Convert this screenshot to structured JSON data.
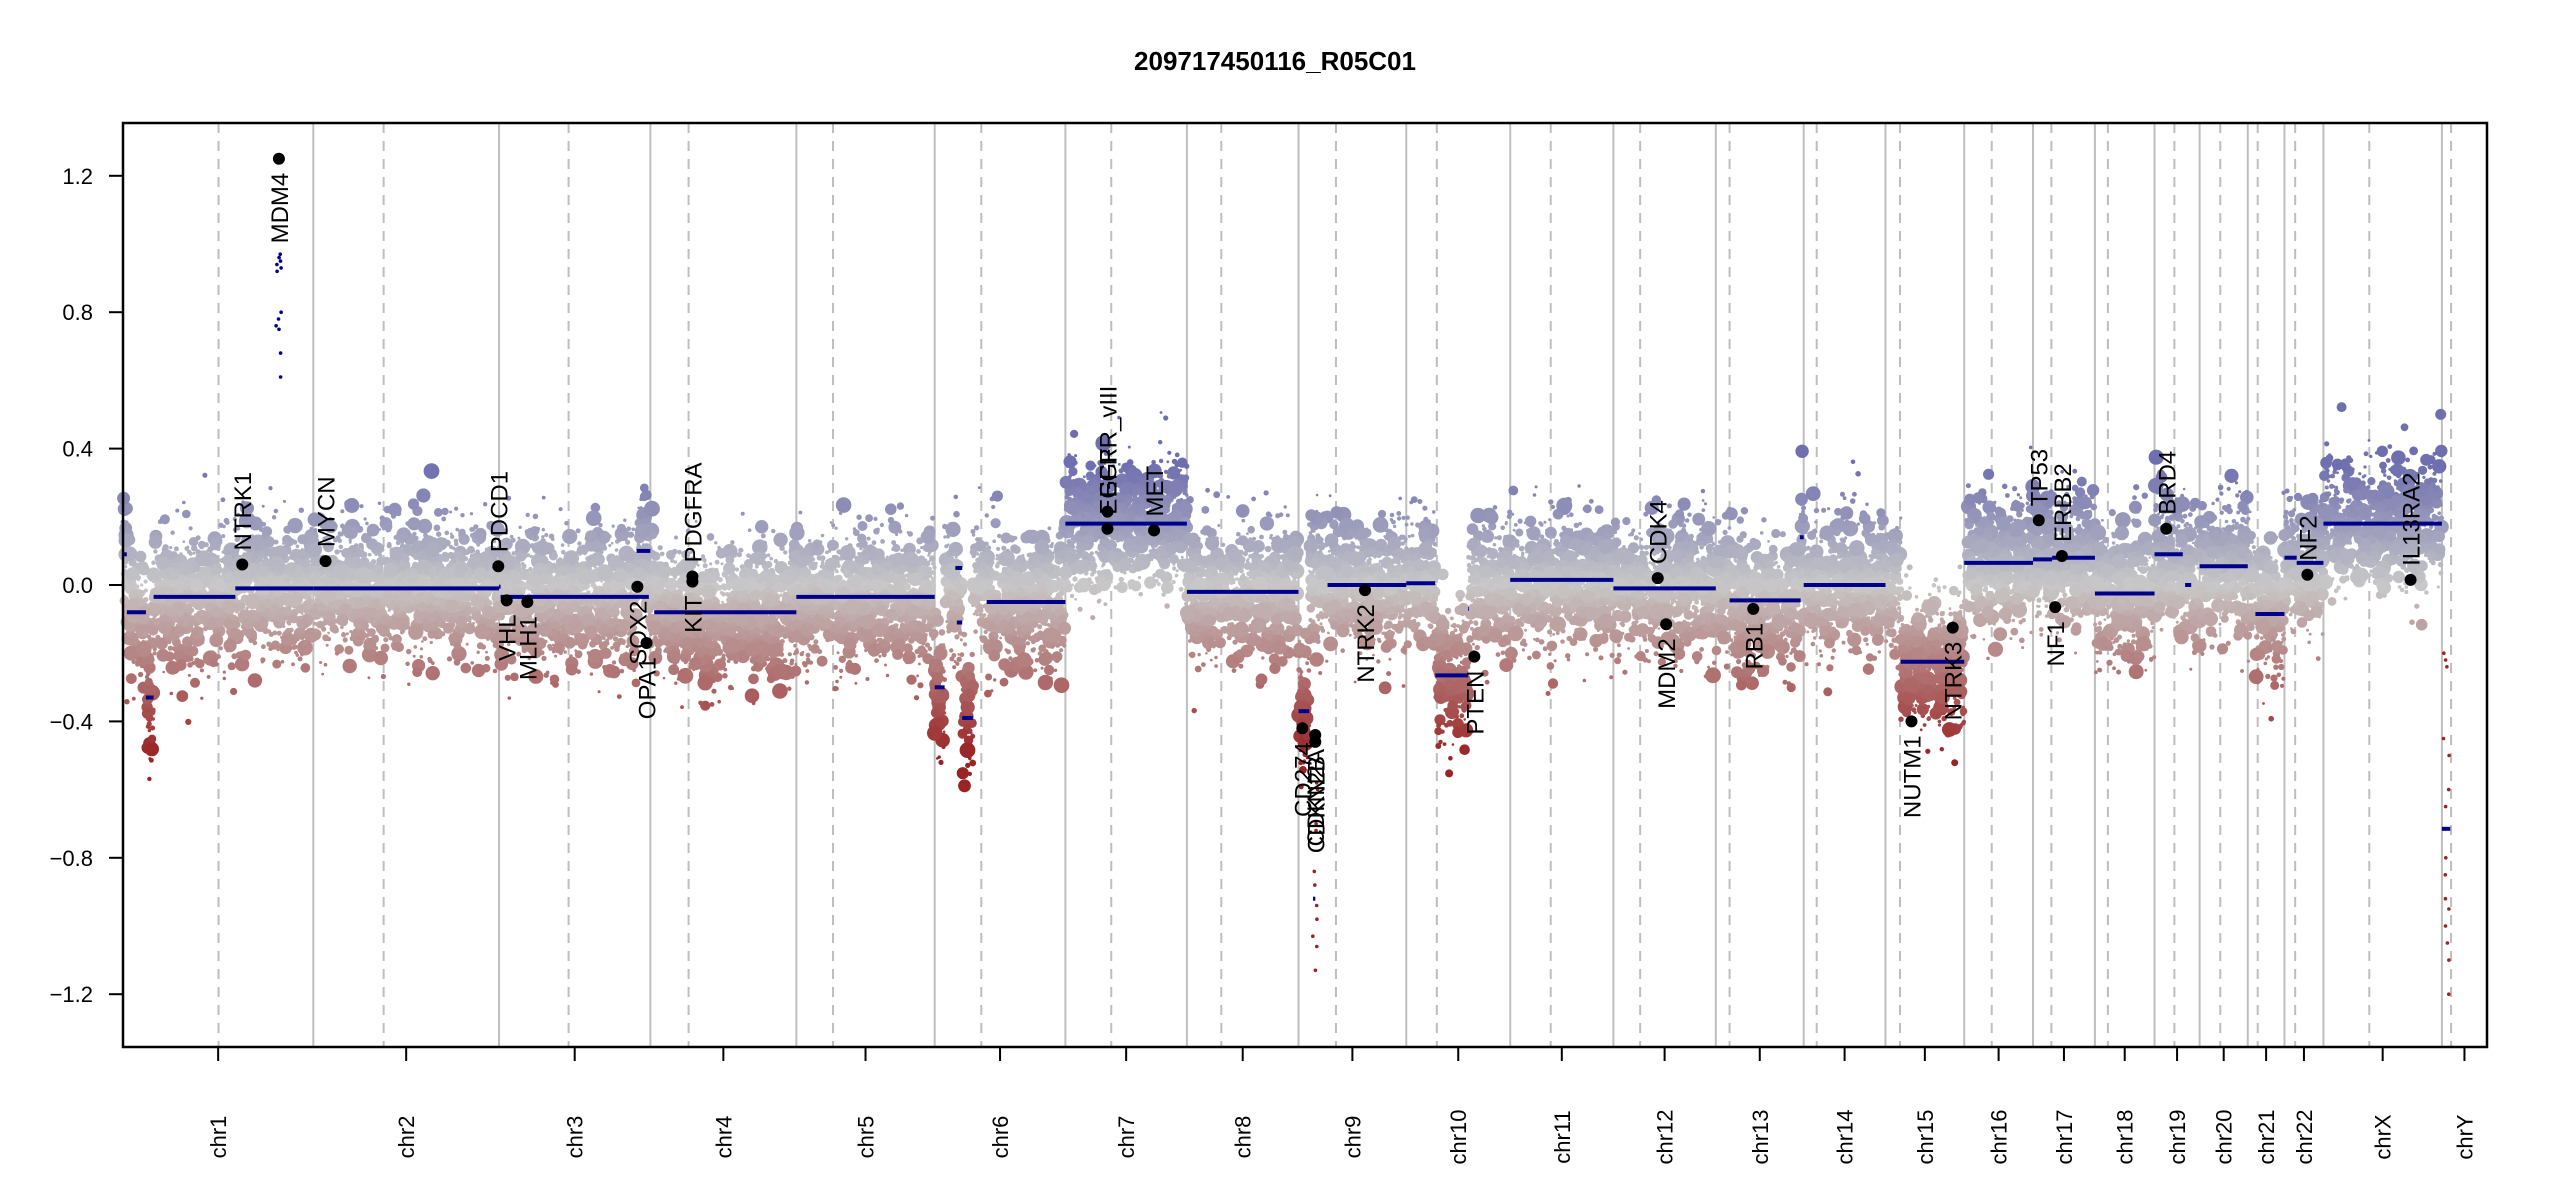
{
  "chart_data": {
    "type": "scatter",
    "title": "209717450116_R05C01",
    "xlabel": "",
    "ylabel": "",
    "ylim": [
      -1.355,
      1.355
    ],
    "yticks": [
      1.2,
      0.8,
      0.4,
      0.0,
      -0.4,
      -0.8,
      -1.2
    ],
    "ytick_labels": [
      "1.2",
      "0.8",
      "0.4",
      "0.0",
      "−0.4",
      "−0.8",
      "−1.2"
    ],
    "x_unit": "Mb (genome position within chromosome)",
    "colors": {
      "gain": "#6f6faf",
      "neutral": "#c8c8c8",
      "loss": "#9a2323",
      "segment": "#00008b",
      "gene_point": "#000000",
      "chrom_border": "#bebebe",
      "centromere": "#bebebe"
    },
    "chromosomes": [
      {
        "name": "chr1",
        "length": 249,
        "centromere": 125
      },
      {
        "name": "chr2",
        "length": 243,
        "centromere": 92
      },
      {
        "name": "chr3",
        "length": 198,
        "centromere": 91
      },
      {
        "name": "chr4",
        "length": 191,
        "centromere": 50
      },
      {
        "name": "chr5",
        "length": 181,
        "centromere": 48
      },
      {
        "name": "chr6",
        "length": 171,
        "centromere": 61
      },
      {
        "name": "chr7",
        "length": 159,
        "centromere": 60
      },
      {
        "name": "chr8",
        "length": 146,
        "centromere": 45
      },
      {
        "name": "chr9",
        "length": 141,
        "centromere": 49
      },
      {
        "name": "chr10",
        "length": 136,
        "centromere": 40
      },
      {
        "name": "chr11",
        "length": 135,
        "centromere": 53
      },
      {
        "name": "chr12",
        "length": 134,
        "centromere": 35
      },
      {
        "name": "chr13",
        "length": 115,
        "centromere": 18
      },
      {
        "name": "chr14",
        "length": 107,
        "centromere": 17
      },
      {
        "name": "chr15",
        "length": 103,
        "centromere": 19
      },
      {
        "name": "chr16",
        "length": 90,
        "centromere": 36
      },
      {
        "name": "chr17",
        "length": 81,
        "centromere": 24
      },
      {
        "name": "chr18",
        "length": 78,
        "centromere": 17
      },
      {
        "name": "chr19",
        "length": 59,
        "centromere": 26
      },
      {
        "name": "chr20",
        "length": 63,
        "centromere": 27
      },
      {
        "name": "chr21",
        "length": 48,
        "centromere": 13
      },
      {
        "name": "chr22",
        "length": 51,
        "centromere": 14
      },
      {
        "name": "chrX",
        "length": 155,
        "centromere": 60
      },
      {
        "name": "chrY",
        "length": 59,
        "centromere": 12
      }
    ],
    "segments": [
      {
        "chrom": "chr1",
        "start": 0,
        "end": 5,
        "value": 0.09
      },
      {
        "chrom": "chr1",
        "start": 5,
        "end": 30,
        "value": -0.08
      },
      {
        "chrom": "chr1",
        "start": 30,
        "end": 40,
        "value": -0.33
      },
      {
        "chrom": "chr1",
        "start": 40,
        "end": 147,
        "value": -0.035
      },
      {
        "chrom": "chr1",
        "start": 147,
        "end": 249,
        "value": -0.01
      },
      {
        "chrom": "chr2",
        "start": 0,
        "end": 243,
        "value": -0.01
      },
      {
        "chrom": "chr3",
        "start": 0,
        "end": 2,
        "value": -0.005
      },
      {
        "chrom": "chr3",
        "start": 2,
        "end": 196,
        "value": -0.035
      },
      {
        "chrom": "chr3",
        "start": 180,
        "end": 198,
        "value": 0.1
      },
      {
        "chrom": "chr4",
        "start": 5,
        "end": 191,
        "value": -0.08
      },
      {
        "chrom": "chr5",
        "start": 0,
        "end": 181,
        "value": -0.035
      },
      {
        "chrom": "chr6",
        "start": 0,
        "end": 13,
        "value": -0.3
      },
      {
        "chrom": "chr6",
        "start": 27,
        "end": 36,
        "value": 0.05
      },
      {
        "chrom": "chr6",
        "start": 29,
        "end": 36,
        "value": -0.11
      },
      {
        "chrom": "chr6",
        "start": 36,
        "end": 50,
        "value": -0.39
      },
      {
        "chrom": "chr6",
        "start": 68,
        "end": 171,
        "value": -0.05
      },
      {
        "chrom": "chr7",
        "start": 0,
        "end": 159,
        "value": 0.18
      },
      {
        "chrom": "chr8",
        "start": 0,
        "end": 146,
        "value": -0.02
      },
      {
        "chrom": "chr9",
        "start": 0,
        "end": 14,
        "value": -0.37
      },
      {
        "chrom": "chr9",
        "start": 19,
        "end": 22,
        "value": -0.92
      },
      {
        "chrom": "chr9",
        "start": 38,
        "end": 141,
        "value": 0.0
      },
      {
        "chrom": "chr10",
        "start": 0,
        "end": 38,
        "value": 0.005
      },
      {
        "chrom": "chr10",
        "start": 38,
        "end": 81,
        "value": -0.265
      },
      {
        "chrom": "chr10",
        "start": 81,
        "end": 82,
        "value": -0.07
      },
      {
        "chrom": "chr11",
        "start": 0,
        "end": 135,
        "value": 0.015
      },
      {
        "chrom": "chr12",
        "start": 0,
        "end": 134,
        "value": -0.01
      },
      {
        "chrom": "chr13",
        "start": 18,
        "end": 111,
        "value": -0.045
      },
      {
        "chrom": "chr13",
        "start": 110,
        "end": 115,
        "value": 0.14
      },
      {
        "chrom": "chr14",
        "start": 0,
        "end": 107,
        "value": 0.0
      },
      {
        "chrom": "chr15",
        "start": 20,
        "end": 103,
        "value": -0.225
      },
      {
        "chrom": "chr16",
        "start": 0,
        "end": 90,
        "value": 0.065
      },
      {
        "chrom": "chr17",
        "start": 0,
        "end": 25,
        "value": 0.075
      },
      {
        "chrom": "chr17",
        "start": 25,
        "end": 81,
        "value": 0.08
      },
      {
        "chrom": "chr18",
        "start": 0,
        "end": 78,
        "value": -0.025
      },
      {
        "chrom": "chr19",
        "start": 0,
        "end": 37,
        "value": 0.09
      },
      {
        "chrom": "chr19",
        "start": 40,
        "end": 48,
        "value": 0.0
      },
      {
        "chrom": "chr20",
        "start": 0,
        "end": 63,
        "value": 0.055
      },
      {
        "chrom": "chr21",
        "start": 10,
        "end": 48,
        "value": -0.085
      },
      {
        "chrom": "chr22",
        "start": 0,
        "end": 16,
        "value": 0.08
      },
      {
        "chrom": "chr22",
        "start": 16,
        "end": 51,
        "value": 0.065
      },
      {
        "chrom": "chrX",
        "start": 0,
        "end": 155,
        "value": 0.18
      },
      {
        "chrom": "chrY",
        "start": 0,
        "end": 11,
        "value": -0.715
      }
    ],
    "genes": [
      {
        "name": "NTRK1",
        "chrom": "chr1",
        "pos": 156,
        "value": 0.06,
        "label_side": "above"
      },
      {
        "name": "MDM4",
        "chrom": "chr1",
        "pos": 204,
        "value": 1.25,
        "label_side": "below"
      },
      {
        "name": "MYCN",
        "chrom": "chr2",
        "pos": 16,
        "value": 0.07,
        "label_side": "above"
      },
      {
        "name": "PDCD1",
        "chrom": "chr2",
        "pos": 242,
        "value": 0.055,
        "label_side": "above"
      },
      {
        "name": "VHL",
        "chrom": "chr3",
        "pos": 10,
        "value": -0.045,
        "label_side": "below"
      },
      {
        "name": "MLH1",
        "chrom": "chr3",
        "pos": 37,
        "value": -0.05,
        "label_side": "below"
      },
      {
        "name": "SOX2",
        "chrom": "chr3",
        "pos": 181,
        "value": -0.005,
        "label_side": "below"
      },
      {
        "name": "OPA1",
        "chrom": "chr3",
        "pos": 193,
        "value": -0.17,
        "label_side": "below"
      },
      {
        "name": "KIT",
        "chrom": "chr4",
        "pos": 55,
        "value": 0.01,
        "label_side": "below"
      },
      {
        "name": "PDGFRA",
        "chrom": "chr4",
        "pos": 55,
        "value": 0.025,
        "label_side": "above"
      },
      {
        "name": "EGFR",
        "chrom": "chr7",
        "pos": 55,
        "value": 0.165,
        "label_side": "above"
      },
      {
        "name": "EGFR_vIII",
        "chrom": "chr7",
        "pos": 55,
        "value": 0.215,
        "label_side": "above"
      },
      {
        "name": "MET",
        "chrom": "chr7",
        "pos": 116,
        "value": 0.16,
        "label_side": "above"
      },
      {
        "name": "CD274",
        "chrom": "chr9",
        "pos": 5,
        "value": -0.42,
        "label_side": "below"
      },
      {
        "name": "CDKN2A",
        "chrom": "chr9",
        "pos": 21.9,
        "value": -0.44,
        "label_side": "below"
      },
      {
        "name": "CDKN2B",
        "chrom": "chr9",
        "pos": 22.0,
        "value": -0.46,
        "label_side": "below"
      },
      {
        "name": "NTRK2",
        "chrom": "chr9",
        "pos": 87,
        "value": -0.015,
        "label_side": "below"
      },
      {
        "name": "PTEN",
        "chrom": "chr10",
        "pos": 89,
        "value": -0.21,
        "label_side": "below"
      },
      {
        "name": "CDK4",
        "chrom": "chr12",
        "pos": 58,
        "value": 0.02,
        "label_side": "above"
      },
      {
        "name": "MDM2",
        "chrom": "chr12",
        "pos": 69,
        "value": -0.115,
        "label_side": "below"
      },
      {
        "name": "RB1",
        "chrom": "chr13",
        "pos": 49,
        "value": -0.07,
        "label_side": "below"
      },
      {
        "name": "NUTM1",
        "chrom": "chr15",
        "pos": 34,
        "value": -0.4,
        "label_side": "below"
      },
      {
        "name": "NTRK3",
        "chrom": "chr15",
        "pos": 88,
        "value": -0.125,
        "label_side": "below"
      },
      {
        "name": "TP53",
        "chrom": "chr17",
        "pos": 7.5,
        "value": 0.19,
        "label_side": "above"
      },
      {
        "name": "NF1",
        "chrom": "chr17",
        "pos": 29,
        "value": -0.065,
        "label_side": "below"
      },
      {
        "name": "ERBB2",
        "chrom": "chr17",
        "pos": 37.8,
        "value": 0.085,
        "label_side": "above"
      },
      {
        "name": "BRD4",
        "chrom": "chr19",
        "pos": 15.4,
        "value": 0.165,
        "label_side": "above"
      },
      {
        "name": "NF2",
        "chrom": "chr22",
        "pos": 30,
        "value": 0.03,
        "label_side": "above"
      },
      {
        "name": "IL13RA2",
        "chrom": "chrX",
        "pos": 114,
        "value": 0.015,
        "label_side": "above"
      }
    ],
    "amplified_probes": [
      {
        "chrom": "chr1",
        "pos": 204,
        "values": [
          0.97,
          0.96,
          0.95,
          0.94,
          0.93,
          0.92,
          0.8,
          0.78,
          0.76,
          0.75,
          0.68,
          0.61
        ]
      },
      {
        "chrom": "chr9",
        "pos": 21.9,
        "values": [
          -0.58,
          -0.6,
          -0.7,
          -0.72,
          -0.84,
          -0.88,
          -0.94,
          -0.98,
          -1.03,
          -1.06,
          -1.13
        ]
      },
      {
        "chrom": "chrY",
        "pos": 6,
        "values": [
          -0.2,
          -0.22,
          -0.24,
          -0.45,
          -0.5,
          -0.6,
          -0.65,
          -0.8,
          -0.85,
          -0.92,
          -0.95,
          -1.0,
          -1.05,
          -1.1,
          -1.2
        ]
      }
    ]
  }
}
